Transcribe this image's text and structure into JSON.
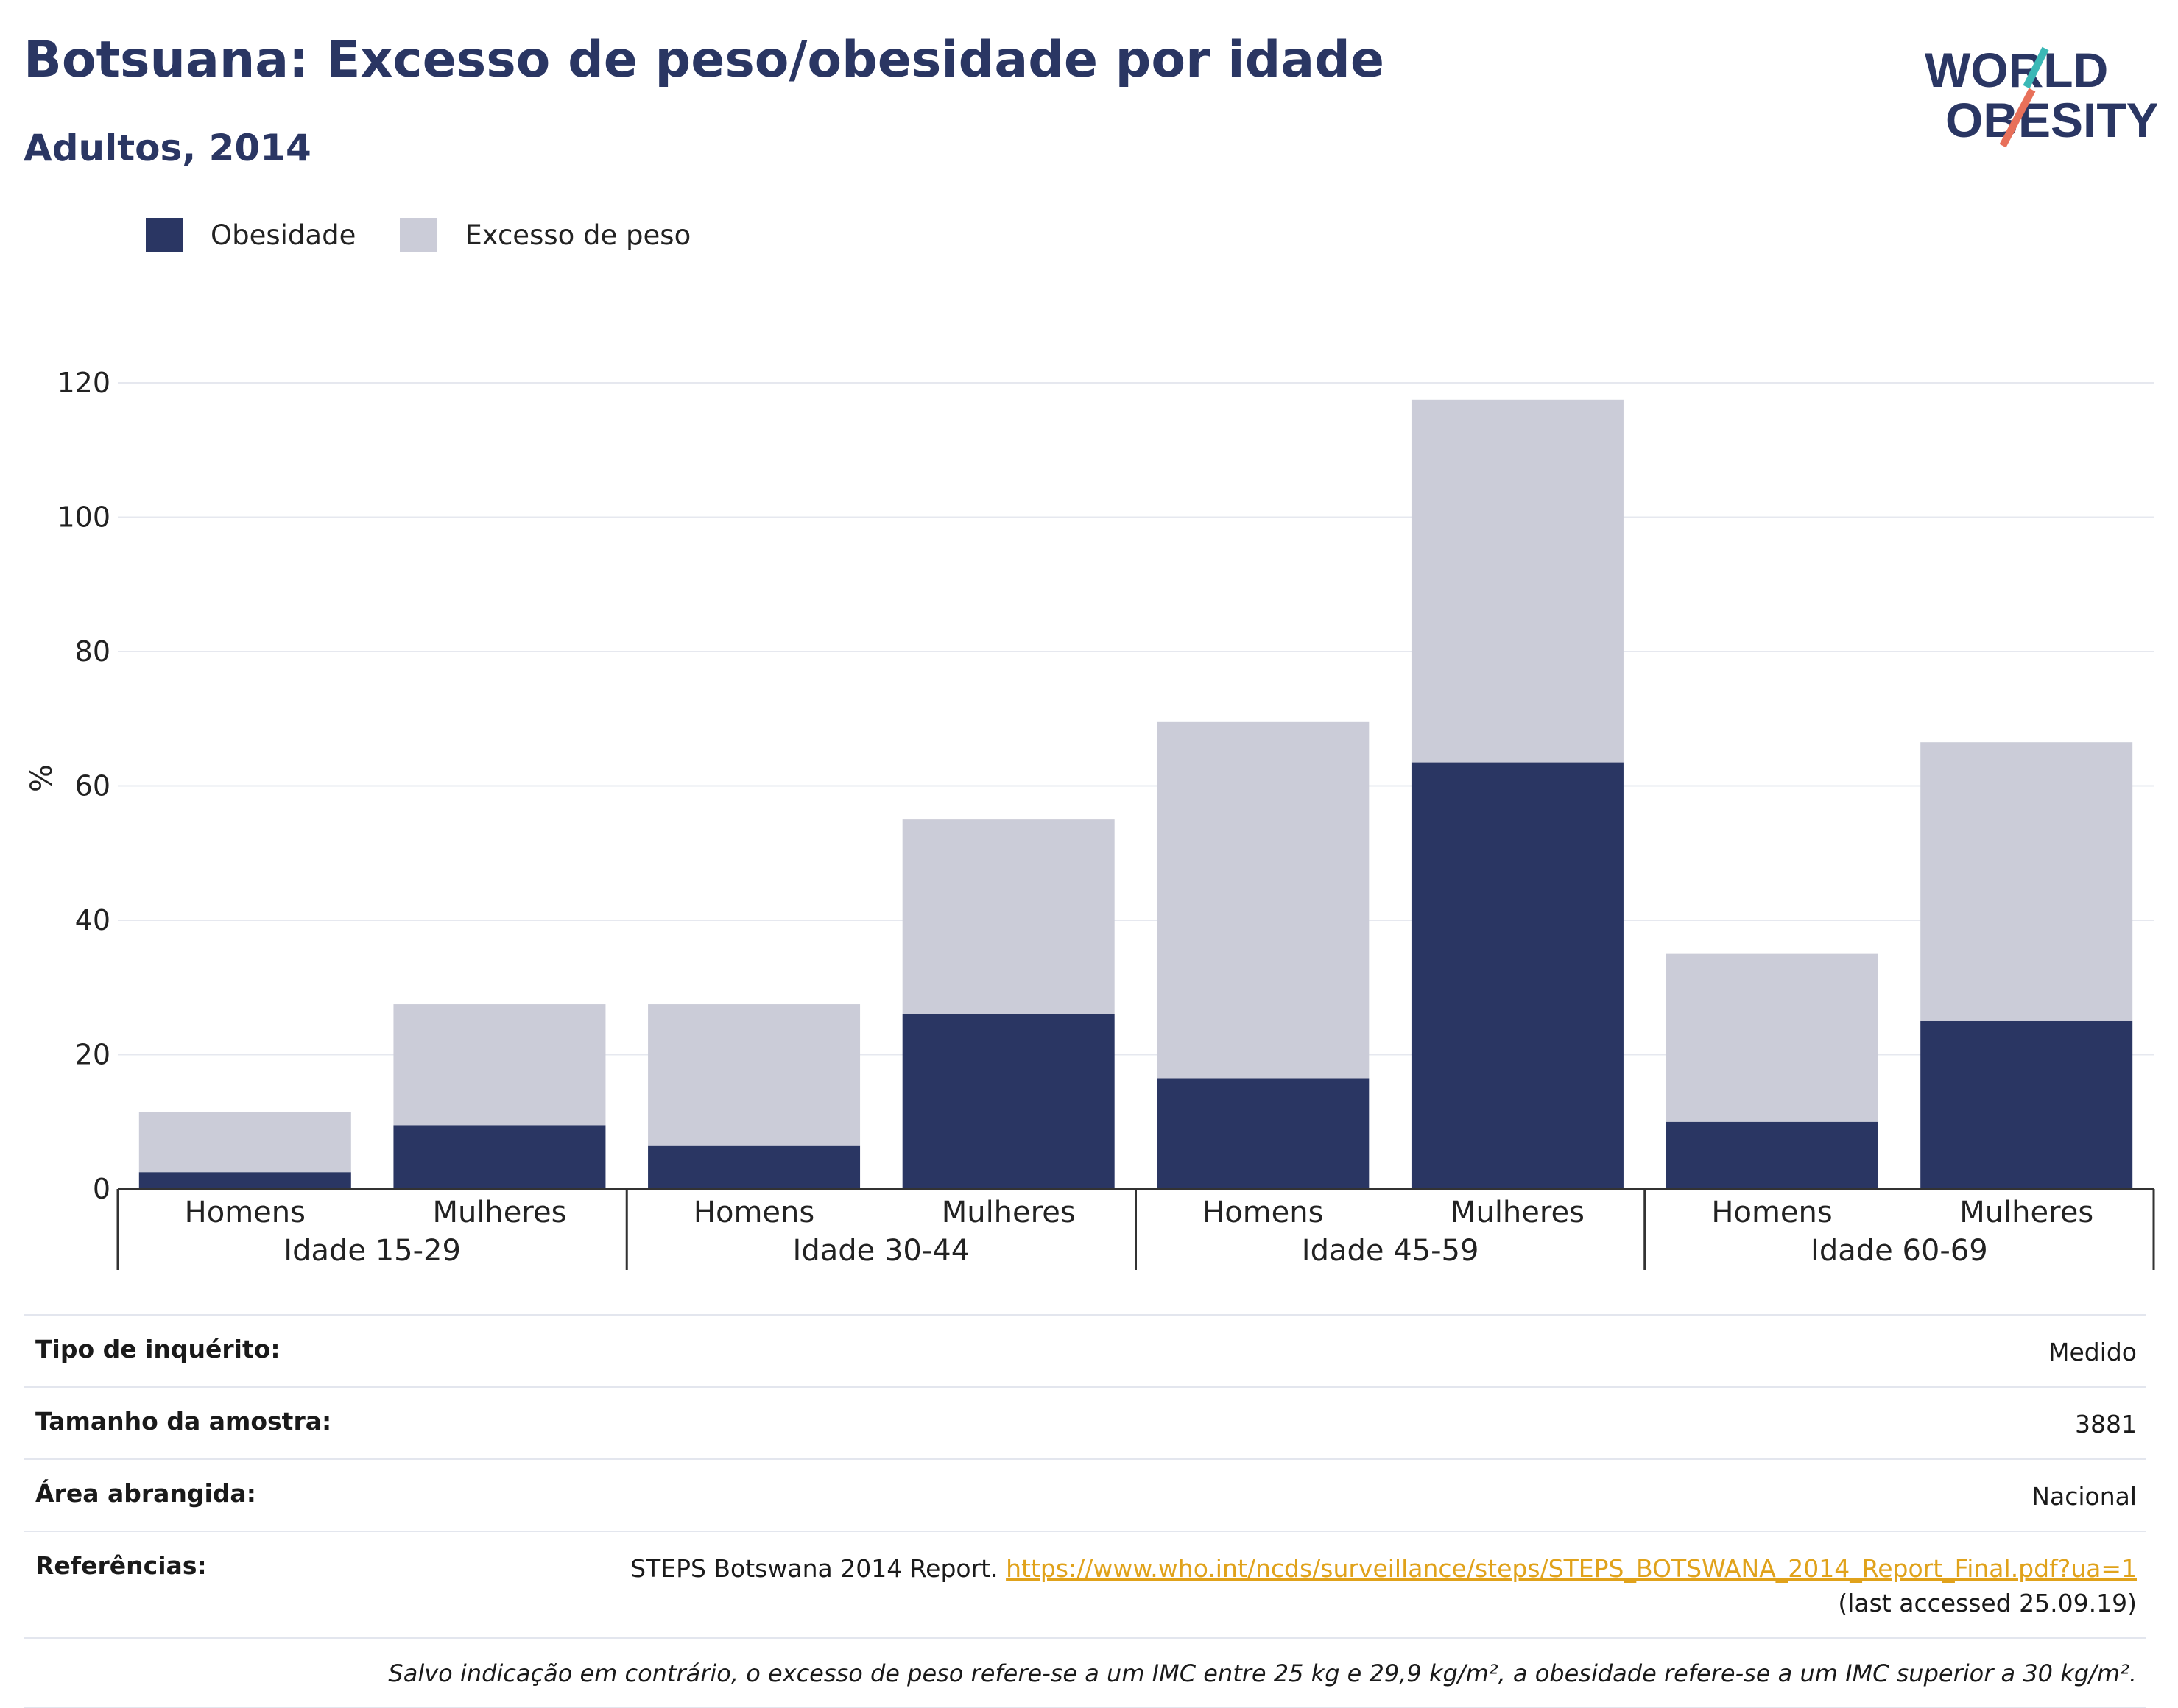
{
  "header": {
    "title": "Botsuana: Excesso de peso/obesidade por idade",
    "subtitle": "Adultos, 2014"
  },
  "logo": {
    "line1": "WORLD",
    "line2": "OBESITY",
    "accent_teal": "#3bb8b6",
    "accent_coral": "#e8705a",
    "text_color": "#2a3663"
  },
  "colors": {
    "obesity": "#2a3663",
    "overweight": "#cbccd8",
    "grid": "#e6e8ef",
    "axis": "#333333"
  },
  "chart_data": {
    "type": "bar",
    "stacked": true,
    "ylabel": "%",
    "ylim": [
      0,
      120
    ],
    "yticks": [
      0,
      20,
      40,
      60,
      80,
      100,
      120
    ],
    "grid": true,
    "legend_position": "top-left",
    "group_labels": [
      "Idade 15-29",
      "Idade 30-44",
      "Idade 45-59",
      "Idade 60-69"
    ],
    "categories": [
      "Homens",
      "Mulheres",
      "Homens",
      "Mulheres",
      "Homens",
      "Mulheres",
      "Homens",
      "Mulheres"
    ],
    "series": [
      {
        "name": "Obesidade",
        "values": [
          2.5,
          9.5,
          6.5,
          26,
          16.5,
          63.5,
          10,
          25
        ]
      },
      {
        "name": "Excesso de peso",
        "values": [
          9,
          18,
          21,
          29,
          53,
          54,
          25,
          41.5
        ]
      }
    ]
  },
  "info": {
    "rows": [
      {
        "label": "Tipo de inquérito:",
        "value": "Medido"
      },
      {
        "label": "Tamanho da amostra:",
        "value": "3881"
      },
      {
        "label": "Área abrangida:",
        "value": "Nacional"
      }
    ],
    "references": {
      "label": "Referências:",
      "prefix": "STEPS Botswana 2014 Report.",
      "link": "https://www.who.int/ncds/surveillance/steps/STEPS_BOTSWANA_2014_Report_Final.pdf?ua=1",
      "suffix": "(last accessed 25.09.19)"
    },
    "note": "Salvo indicação em contrário, o excesso de peso refere-se a um IMC entre 25 kg e 29,9 kg/m², a obesidade refere-se a um IMC superior a 30 kg/m²."
  }
}
